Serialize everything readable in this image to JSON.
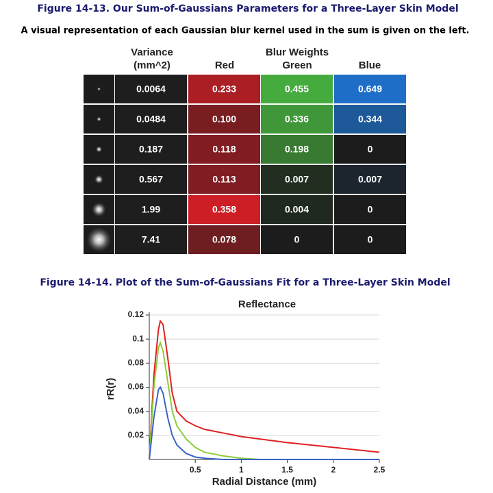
{
  "figure13": {
    "caption": "Figure 14-13. Our Sum-of-Gaussians Parameters for a Three-Layer Skin Model",
    "description": "A visual representation of each Gaussian blur kernel used in the sum is given on the left.",
    "headers": {
      "variance": [
        "Variance",
        "(mm^2)"
      ],
      "blur_weights": "Blur Weights",
      "red": "Red",
      "green": "Green",
      "blue": "Blue"
    },
    "rows": [
      [
        "0.0064",
        "0.233",
        "0.455",
        "0.649"
      ],
      [
        "0.0484",
        "0.100",
        "0.336",
        "0.344"
      ],
      [
        "0.187",
        "0.118",
        "0.198",
        "0"
      ],
      [
        "0.567",
        "0.113",
        "0.007",
        "0.007"
      ],
      [
        "1.99",
        "0.358",
        "0.004",
        "0"
      ],
      [
        "7.41",
        "0.078",
        "0",
        "0"
      ]
    ]
  },
  "figure14": {
    "caption": "Figure 14-14. Plot of the Sum-of-Gaussians Fit for a Three-Layer Skin Model"
  },
  "chart_data": {
    "type": "line",
    "title": "Reflectance",
    "x_label": "Radial Distance (mm)",
    "y_label": "rR(r)",
    "x": [
      0,
      0.05,
      0.1,
      0.12,
      0.15,
      0.2,
      0.25,
      0.3,
      0.4,
      0.5,
      0.6,
      0.8,
      1.0,
      1.2,
      1.5,
      2.0,
      2.5
    ],
    "series": [
      {
        "color": "#e02020",
        "values": [
          0,
          0.07,
          0.108,
          0.115,
          0.112,
          0.085,
          0.055,
          0.04,
          0.032,
          0.028,
          0.025,
          0.022,
          0.019,
          0.017,
          0.014,
          0.01,
          0.006
        ]
      },
      {
        "color": "#8ccc3c",
        "values": [
          0,
          0.06,
          0.093,
          0.097,
          0.09,
          0.065,
          0.04,
          0.028,
          0.017,
          0.01,
          0.006,
          0.003,
          0.001,
          0,
          0,
          0,
          0
        ]
      },
      {
        "color": "#3a62c8",
        "values": [
          0,
          0.035,
          0.058,
          0.06,
          0.055,
          0.035,
          0.02,
          0.012,
          0.005,
          0.002,
          0.001,
          0,
          0,
          0,
          0,
          0,
          0
        ]
      }
    ],
    "xlim": [
      0,
      2.5
    ],
    "ylim": [
      0,
      0.12
    ],
    "xticks": [
      0.5,
      1,
      1.5,
      2,
      2.5
    ],
    "yticks": [
      0.02,
      0.04,
      0.06,
      0.08,
      0.1,
      0.12
    ],
    "grid": true
  }
}
